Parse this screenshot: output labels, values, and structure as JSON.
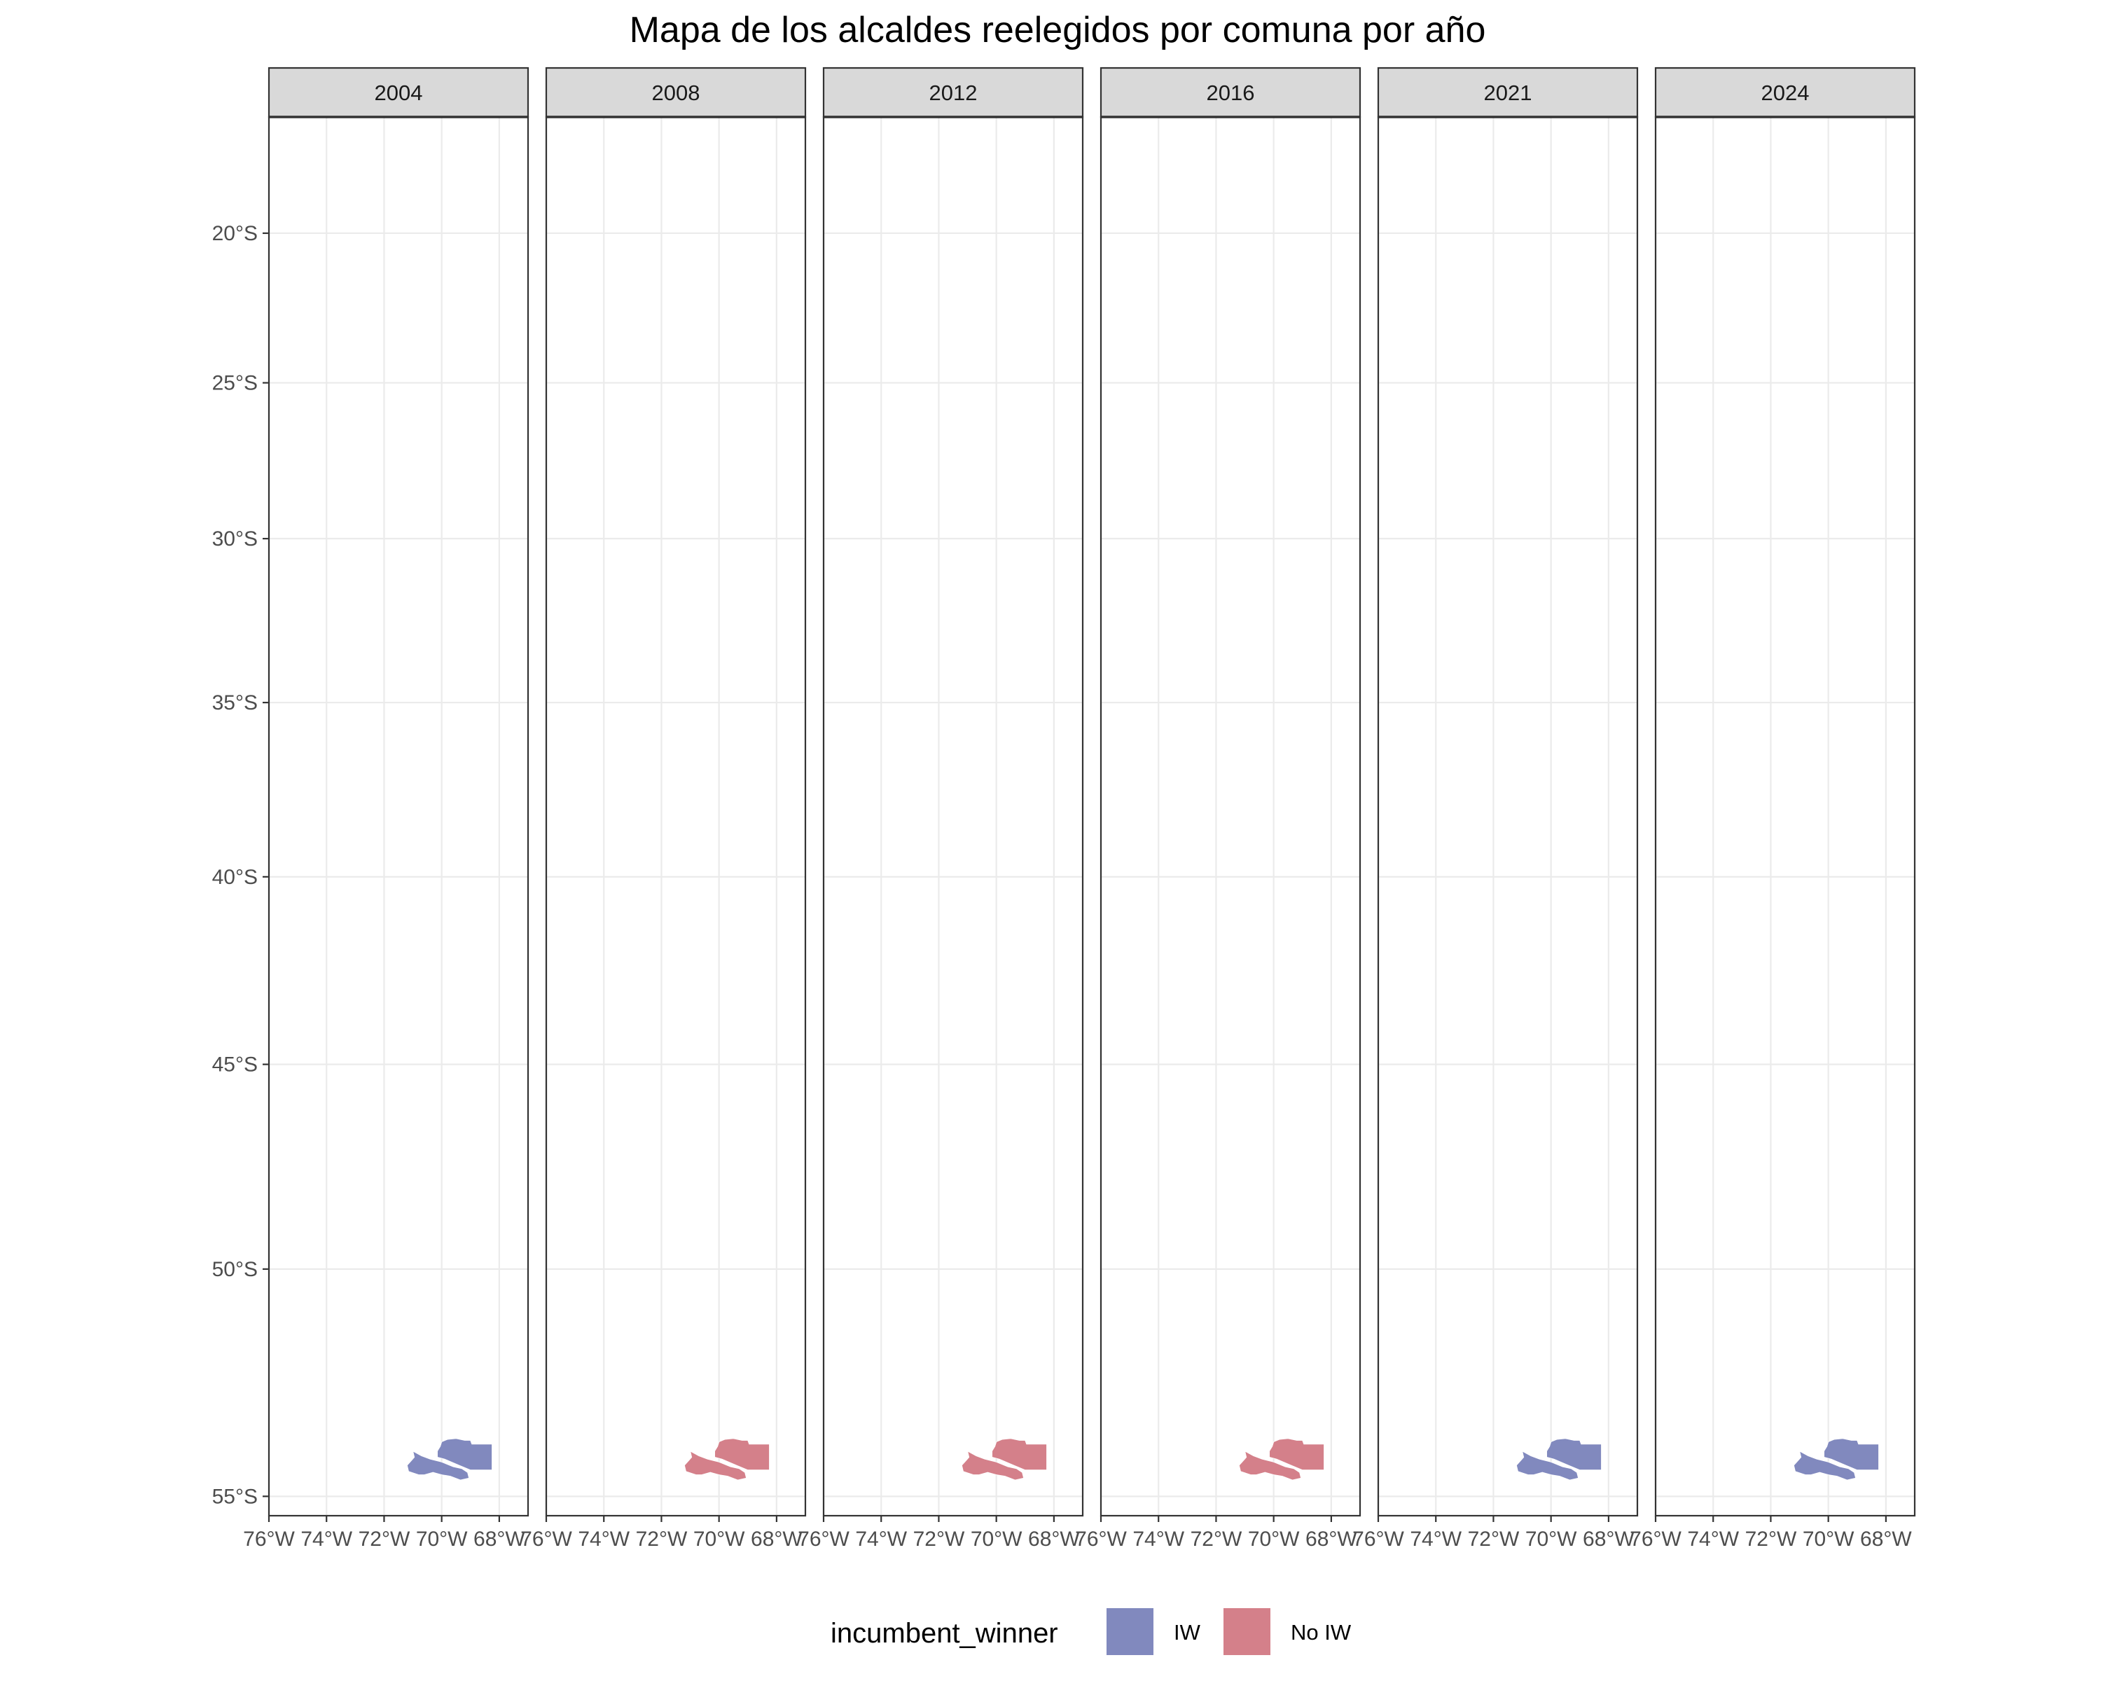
{
  "chart_data": {
    "type": "map",
    "title": "Mapa de los alcaldes reelegidos por comuna por año",
    "facets": [
      "2004",
      "2008",
      "2012",
      "2016",
      "2021",
      "2024"
    ],
    "x_ticks": [
      "76°W",
      "74°W",
      "72°W",
      "70°W",
      "68°W"
    ],
    "x_tick_values": [
      -76,
      -74,
      -72,
      -70,
      -68
    ],
    "y_ticks": [
      "20°S",
      "25°S",
      "30°S",
      "35°S",
      "40°S",
      "45°S",
      "50°S",
      "55°S"
    ],
    "y_tick_values": [
      -20,
      -25,
      -30,
      -35,
      -40,
      -45,
      -50,
      -55
    ],
    "xlim": [
      -76,
      -67
    ],
    "ylim": [
      -55.4,
      -16.0
    ],
    "grid": true,
    "legend": {
      "title": "incumbent_winner",
      "position": "bottom",
      "entries": [
        {
          "label": "IW",
          "color": "#8189BE"
        },
        {
          "label": "No IW",
          "color": "#D4808A"
        }
      ]
    },
    "values": [
      {
        "year": "2004",
        "incumbent_winner": "IW"
      },
      {
        "year": "2008",
        "incumbent_winner": "No IW"
      },
      {
        "year": "2012",
        "incumbent_winner": "No IW"
      },
      {
        "year": "2016",
        "incumbent_winner": "No IW"
      },
      {
        "year": "2021",
        "incumbent_winner": "IW"
      },
      {
        "year": "2024",
        "incumbent_winner": "IW"
      }
    ],
    "regions": [
      {
        "name": "northern",
        "polygon": [
          [
            -70.0,
            -53.85
          ],
          [
            -69.8,
            -53.8
          ],
          [
            -69.5,
            -53.78
          ],
          [
            -69.2,
            -53.82
          ],
          [
            -69.0,
            -53.82
          ],
          [
            -68.95,
            -53.9
          ],
          [
            -68.25,
            -53.9
          ],
          [
            -68.25,
            -54.45
          ],
          [
            -69.0,
            -54.45
          ],
          [
            -69.4,
            -54.35
          ],
          [
            -69.9,
            -54.22
          ],
          [
            -70.15,
            -54.18
          ],
          [
            -70.15,
            -54.05
          ],
          [
            -70.05,
            -53.95
          ]
        ]
      },
      {
        "name": "southern",
        "polygon": [
          [
            -71.0,
            -54.05
          ],
          [
            -70.7,
            -54.15
          ],
          [
            -70.4,
            -54.22
          ],
          [
            -70.0,
            -54.28
          ],
          [
            -69.6,
            -54.38
          ],
          [
            -69.3,
            -54.42
          ],
          [
            -69.1,
            -54.5
          ],
          [
            -69.05,
            -54.62
          ],
          [
            -69.35,
            -54.66
          ],
          [
            -69.7,
            -54.58
          ],
          [
            -70.0,
            -54.55
          ],
          [
            -70.3,
            -54.5
          ],
          [
            -70.6,
            -54.55
          ],
          [
            -70.8,
            -54.55
          ],
          [
            -71.15,
            -54.48
          ],
          [
            -71.2,
            -54.35
          ],
          [
            -71.05,
            -54.25
          ],
          [
            -70.95,
            -54.18
          ]
        ]
      }
    ]
  }
}
